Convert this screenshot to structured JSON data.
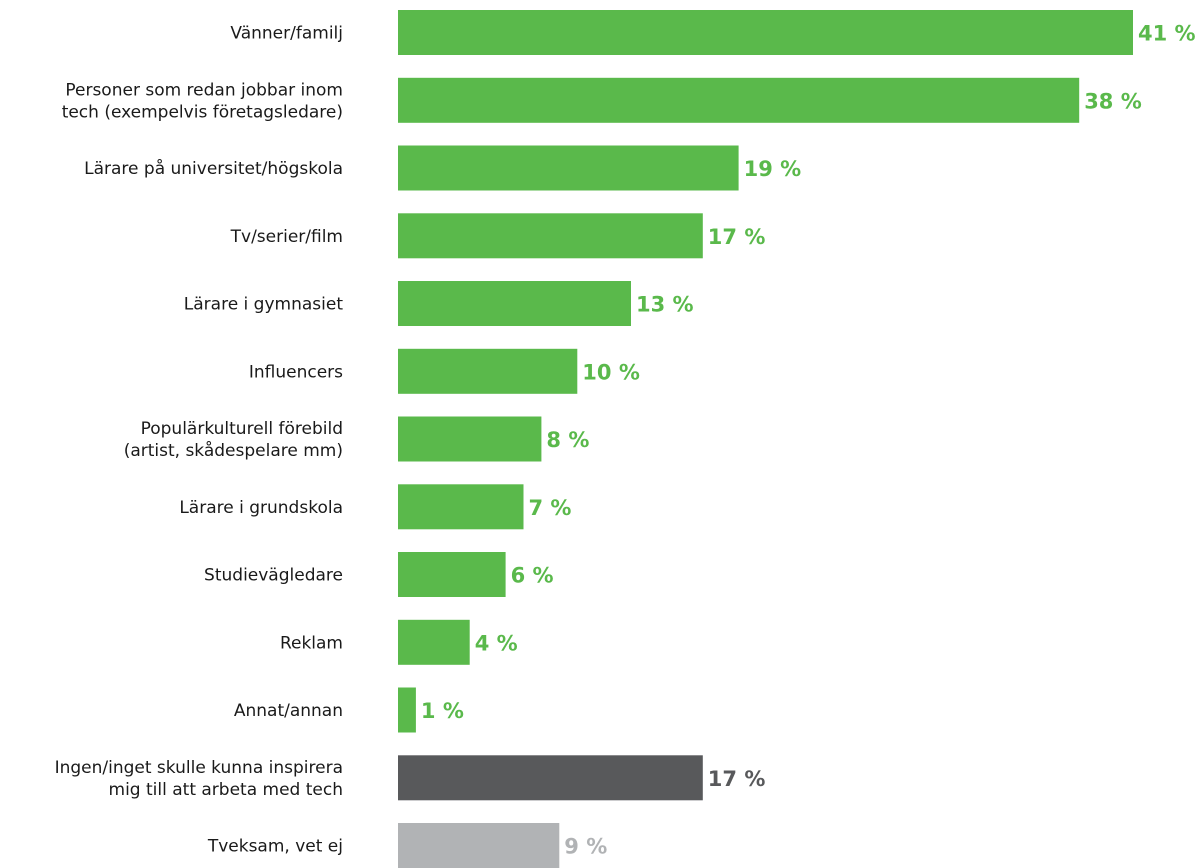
{
  "chart_data": {
    "type": "bar",
    "orientation": "horizontal",
    "value_suffix": " %",
    "categories": [
      [
        "Vänner/familj"
      ],
      [
        "Personer som redan jobbar inom",
        "tech (exempelvis företagsledare)"
      ],
      [
        "Lärare på universitet/högskola"
      ],
      [
        "Tv/serier/film"
      ],
      [
        "Lärare i gymnasiet"
      ],
      [
        "Influencers"
      ],
      [
        "Populärkulturell förebild",
        "(artist, skådespelare mm)"
      ],
      [
        "Lärare i grundskola"
      ],
      [
        "Studievägledare"
      ],
      [
        "Reklam"
      ],
      [
        "Annat/annan"
      ],
      [
        "Ingen/inget skulle kunna inspirera",
        "mig till att arbeta med tech"
      ],
      [
        "Tveksam, vet ej"
      ]
    ],
    "values": [
      41,
      38,
      19,
      17,
      13,
      10,
      8,
      7,
      6,
      4,
      1,
      17,
      9
    ],
    "bar_colors": [
      "#5ab94b",
      "#5ab94b",
      "#5ab94b",
      "#5ab94b",
      "#5ab94b",
      "#5ab94b",
      "#5ab94b",
      "#5ab94b",
      "#5ab94b",
      "#5ab94b",
      "#5ab94b",
      "#58595b",
      "#b1b3b5"
    ],
    "label_colors": [
      "#5ab94b",
      "#5ab94b",
      "#5ab94b",
      "#5ab94b",
      "#5ab94b",
      "#5ab94b",
      "#5ab94b",
      "#5ab94b",
      "#5ab94b",
      "#5ab94b",
      "#5ab94b",
      "#58595b",
      "#b1b3b5"
    ],
    "xlim": [
      0,
      41
    ],
    "grid": false,
    "title": "",
    "xlabel": "",
    "ylabel": ""
  }
}
